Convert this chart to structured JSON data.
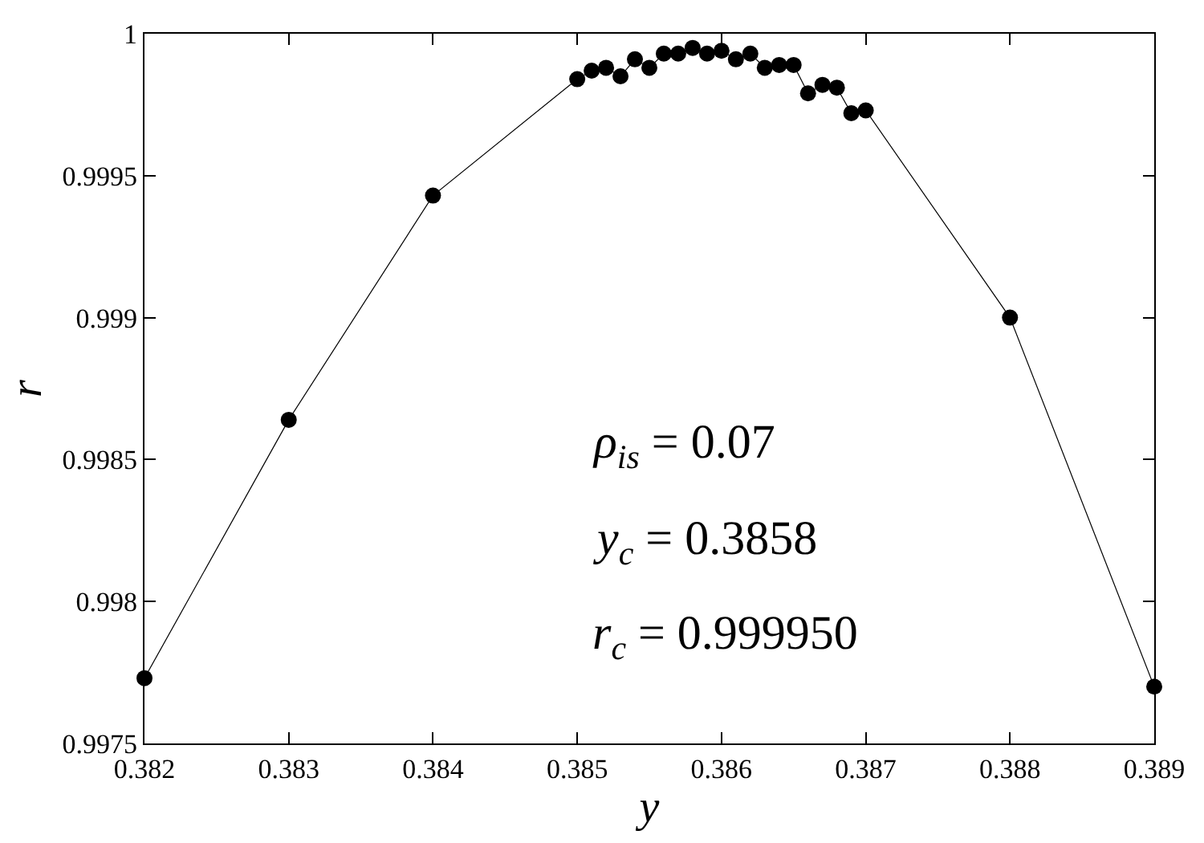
{
  "chart_data": {
    "type": "line",
    "xlabel": "y",
    "ylabel": "r",
    "x": [
      0.382,
      0.383,
      0.384,
      0.385,
      0.3851,
      0.3852,
      0.3853,
      0.3854,
      0.3855,
      0.3856,
      0.3857,
      0.3858,
      0.3859,
      0.386,
      0.3861,
      0.3862,
      0.3863,
      0.3864,
      0.3865,
      0.3866,
      0.3867,
      0.3868,
      0.3869,
      0.387,
      0.388,
      0.389
    ],
    "series": [
      {
        "color": "#000000",
        "values": [
          0.99773,
          0.99864,
          0.99943,
          0.99984,
          0.99987,
          0.99988,
          0.99985,
          0.99991,
          0.99988,
          0.99993,
          0.99993,
          0.99995,
          0.99993,
          0.99994,
          0.99991,
          0.99993,
          0.99988,
          0.99989,
          0.99989,
          0.99979,
          0.99982,
          0.99981,
          0.99972,
          0.99973,
          0.999,
          0.9977
        ]
      }
    ],
    "xlim": [
      0.382,
      0.389
    ],
    "xticks": [
      0.382,
      0.383,
      0.384,
      0.385,
      0.386,
      0.387,
      0.388,
      0.389
    ],
    "ylim": [
      0.9975,
      1
    ],
    "yticks": [
      0.9975,
      0.998,
      0.9985,
      0.999,
      0.9995,
      1
    ],
    "marker": "circle",
    "line_style": "solid",
    "annotations": [
      "ρ$_{is}$ = 0.07",
      "y$_{c}$ = 0.3858",
      "r$_{c}$ = 0.999950"
    ]
  }
}
